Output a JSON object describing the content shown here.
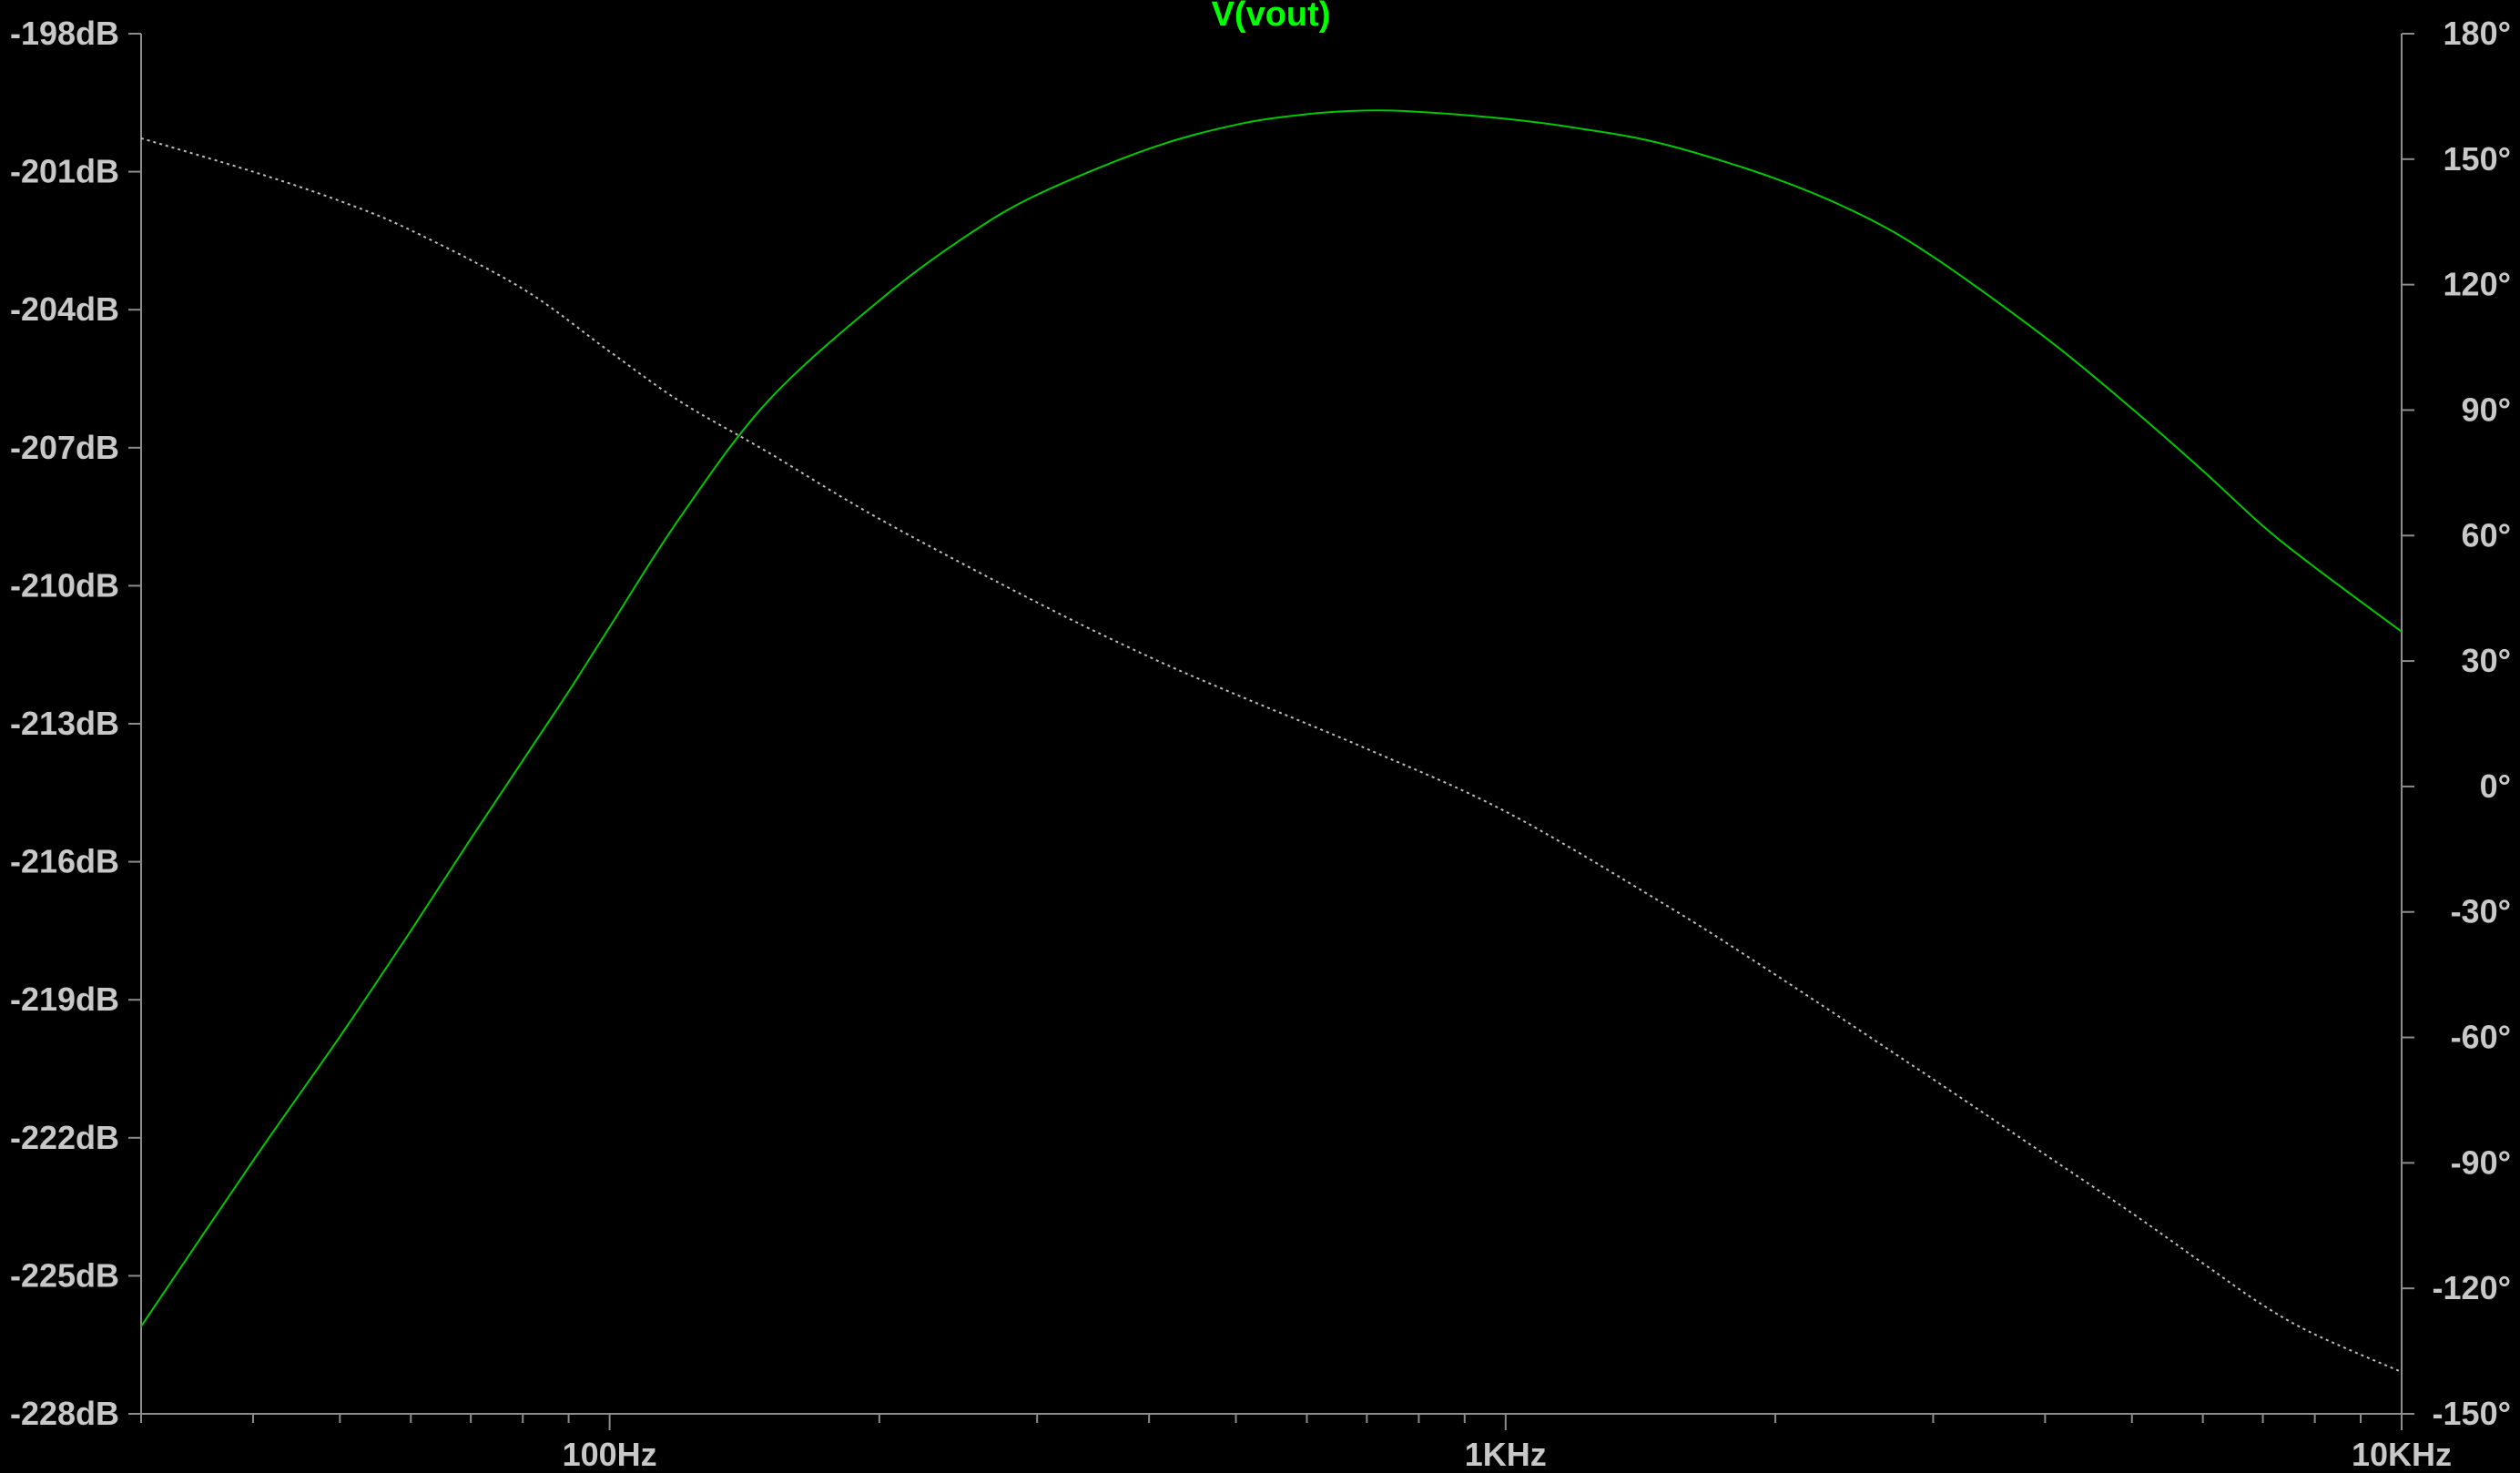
{
  "chart_data": {
    "type": "line",
    "title": "V(vout)",
    "xlabel": "",
    "ylabel": "",
    "x_scale": "log",
    "xlim": [
      30,
      10000
    ],
    "ylim_left": [
      -228,
      -198
    ],
    "ylim_right": [
      -150,
      180
    ],
    "grid": false,
    "x_ticks": [
      {
        "value": 100,
        "label": "100Hz"
      },
      {
        "value": 1000,
        "label": "1KHz"
      },
      {
        "value": 10000,
        "label": "10KHz"
      }
    ],
    "y_left_ticks": [
      {
        "value": -198,
        "label": "-198dB"
      },
      {
        "value": -201,
        "label": "-201dB"
      },
      {
        "value": -204,
        "label": "-204dB"
      },
      {
        "value": -207,
        "label": "-207dB"
      },
      {
        "value": -210,
        "label": "-210dB"
      },
      {
        "value": -213,
        "label": "-213dB"
      },
      {
        "value": -216,
        "label": "-216dB"
      },
      {
        "value": -219,
        "label": "-219dB"
      },
      {
        "value": -222,
        "label": "-222dB"
      },
      {
        "value": -225,
        "label": "-225dB"
      },
      {
        "value": -228,
        "label": "-228dB"
      }
    ],
    "y_right_ticks": [
      {
        "value": 180,
        "label": "180°"
      },
      {
        "value": 150,
        "label": "150°"
      },
      {
        "value": 120,
        "label": "120°"
      },
      {
        "value": 90,
        "label": "90°"
      },
      {
        "value": 60,
        "label": "60°"
      },
      {
        "value": 30,
        "label": "30°"
      },
      {
        "value": 0,
        "label": "0°"
      },
      {
        "value": -30,
        "label": "-30°"
      },
      {
        "value": -60,
        "label": "-60°"
      },
      {
        "value": -90,
        "label": "-90°"
      },
      {
        "value": -120,
        "label": "-120°"
      },
      {
        "value": -150,
        "label": "-150°"
      }
    ],
    "series": [
      {
        "axis": "left",
        "color": "#00c800",
        "style": "solid",
        "x": [
          30,
          40,
          50,
          60,
          70,
          80,
          90,
          100,
          120,
          150,
          200,
          250,
          300,
          400,
          500,
          600,
          700,
          800,
          1000,
          1200,
          1500,
          2000,
          2500,
          3000,
          4000,
          5000,
          6000,
          7000,
          8000,
          10000
        ],
        "y": [
          -226.1,
          -222.5,
          -219.8,
          -217.5,
          -215.5,
          -213.8,
          -212.3,
          -210.9,
          -208.5,
          -206.0,
          -203.8,
          -202.4,
          -201.5,
          -200.5,
          -199.98,
          -199.75,
          -199.67,
          -199.7,
          -199.85,
          -200.05,
          -200.4,
          -201.15,
          -201.95,
          -202.85,
          -204.6,
          -206.15,
          -207.5,
          -208.7,
          -209.6,
          -211.0
        ]
      },
      {
        "axis": "right",
        "color": "#bebebe",
        "style": "dotted",
        "x": [
          30,
          40,
          50,
          60,
          80,
          100,
          120,
          150,
          200,
          300,
          400,
          500,
          700,
          1000,
          1500,
          2000,
          3000,
          4000,
          5000,
          6000,
          7000,
          8000,
          10000
        ],
        "y": [
          155,
          147,
          140,
          133,
          119,
          104,
          92,
          80,
          64,
          44,
          31,
          22,
          9,
          -6,
          -28,
          -45,
          -70,
          -88,
          -102,
          -114,
          -124,
          -131,
          -140
        ]
      }
    ]
  }
}
